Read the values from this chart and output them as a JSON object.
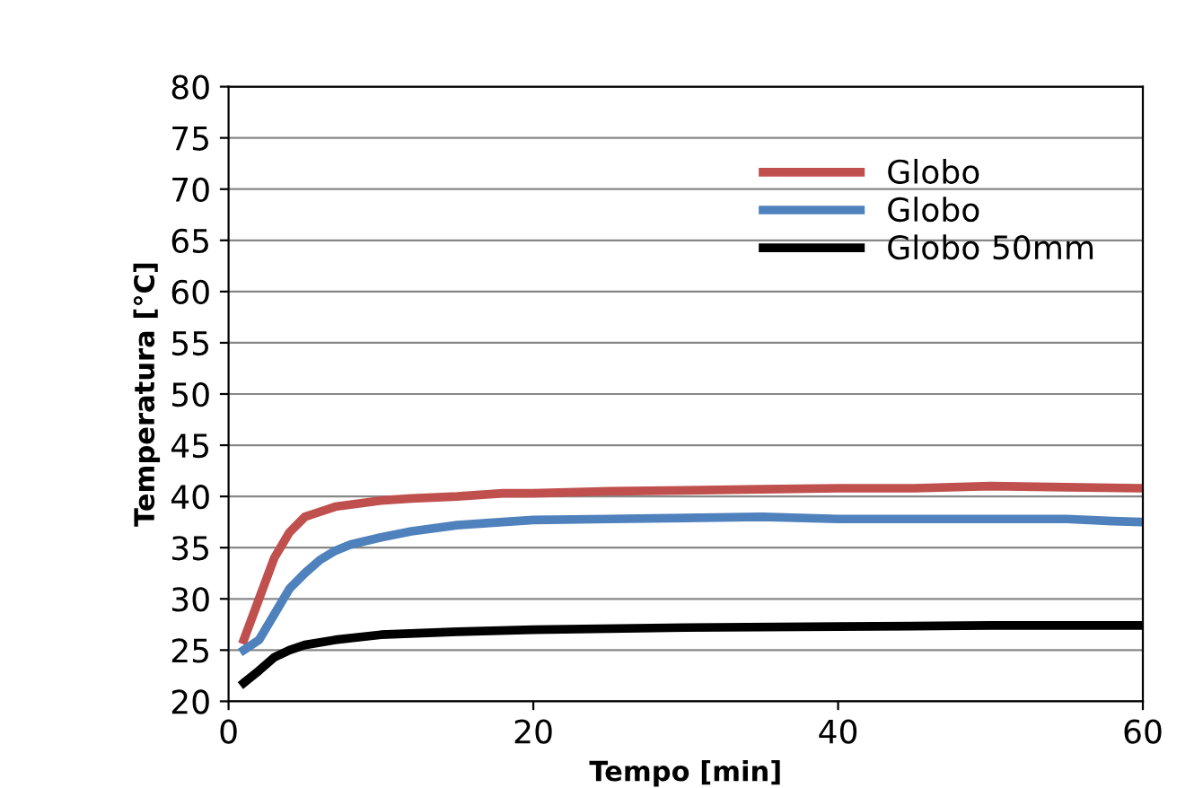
{
  "chart_data": {
    "type": "line",
    "xlabel": "Tempo [min]",
    "ylabel": "Temperatura [°C]",
    "xlim": [
      0,
      60
    ],
    "xticks": [
      0,
      20,
      40,
      60
    ],
    "ylim": [
      20,
      80
    ],
    "yticks": [
      20,
      25,
      30,
      35,
      40,
      45,
      50,
      55,
      60,
      65,
      70,
      75,
      80
    ],
    "grid": "y",
    "legend": "top right",
    "marker": "none",
    "line_style": "solid",
    "series": [
      {
        "name": "Globo",
        "color": "#c0504d",
        "x": [
          1,
          2,
          3,
          4,
          5,
          6,
          7,
          8,
          10,
          12,
          15,
          18,
          20,
          25,
          30,
          35,
          40,
          45,
          50,
          55,
          60
        ],
        "values": [
          26,
          30,
          34,
          36.5,
          38,
          38.5,
          39,
          39.2,
          39.6,
          39.8,
          40,
          40.3,
          40.3,
          40.5,
          40.6,
          40.7,
          40.8,
          40.8,
          41,
          40.9,
          40.8
        ]
      },
      {
        "name": "Globo",
        "color": "#4f81bd",
        "x": [
          1,
          2,
          3,
          4,
          5,
          6,
          7,
          8,
          10,
          12,
          15,
          18,
          20,
          25,
          30,
          35,
          40,
          45,
          50,
          55,
          58,
          60
        ],
        "values": [
          25,
          26,
          28.5,
          31,
          32.5,
          33.8,
          34.7,
          35.3,
          36,
          36.6,
          37.2,
          37.5,
          37.7,
          37.8,
          37.9,
          38,
          37.8,
          37.8,
          37.8,
          37.8,
          37.6,
          37.5
        ]
      },
      {
        "name": "Globo 50mm",
        "color": "#000000",
        "x": [
          1,
          2,
          3,
          4,
          5,
          7,
          10,
          15,
          20,
          30,
          40,
          50,
          60
        ],
        "values": [
          21.8,
          23,
          24.3,
          25,
          25.5,
          26,
          26.5,
          26.8,
          27,
          27.2,
          27.3,
          27.4,
          27.4
        ]
      }
    ]
  }
}
